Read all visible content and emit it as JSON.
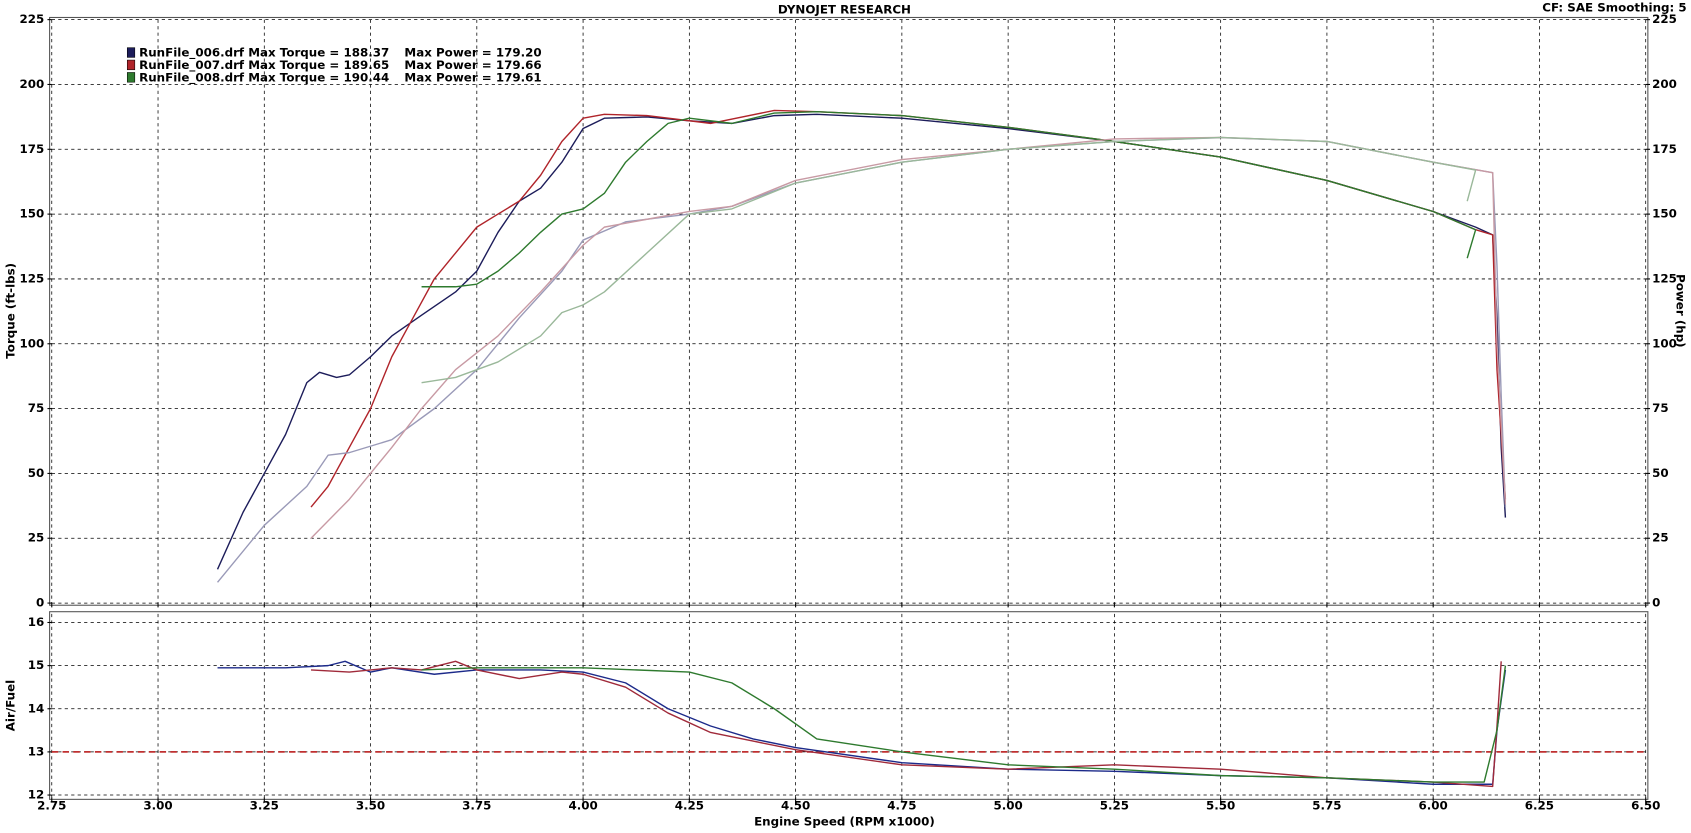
{
  "chart_data": [
    {
      "type": "line",
      "title": "DYNOJET RESEARCH",
      "subtitle": "CF: SAE  Smoothing: 5",
      "ylabel": "Torque (ft-lbs)",
      "y2label": "Power (hp)",
      "xlim": [
        2.75,
        6.5
      ],
      "xticks": [
        2.75,
        3,
        3.25,
        3.5,
        3.75,
        4,
        4.25,
        4.5,
        4.75,
        5,
        5.25,
        5.5,
        5.75,
        6,
        6.25,
        6.5
      ],
      "ylim": [
        0,
        225
      ],
      "yticks": [
        0,
        25,
        50,
        75,
        100,
        125,
        150,
        175,
        200,
        225
      ],
      "y2lim": [
        0,
        225
      ],
      "y2ticks": [
        0,
        25,
        50,
        75,
        100,
        125,
        150,
        175,
        200,
        225
      ],
      "grid": true,
      "legend": "top-left",
      "series": [
        {
          "name": "RunFile_006.drf Max Torque = 188.37",
          "color": "#1c1c5a",
          "x": [
            3.14,
            3.2,
            3.25,
            3.3,
            3.35,
            3.38,
            3.42,
            3.45,
            3.5,
            3.55,
            3.62,
            3.7,
            3.75,
            3.8,
            3.85,
            3.9,
            3.95,
            4.0,
            4.05,
            4.15,
            4.25,
            4.35,
            4.45,
            4.55,
            4.75,
            5.0,
            5.25,
            5.5,
            5.75,
            6.0,
            6.1,
            6.14,
            6.15,
            6.16,
            6.17
          ],
          "values": [
            13,
            35,
            50,
            65,
            85,
            89,
            87,
            88,
            95,
            103,
            111,
            120,
            128,
            143,
            155,
            160,
            170,
            183,
            187,
            187.5,
            186,
            185,
            188,
            188.5,
            187,
            183,
            178,
            172,
            163,
            151,
            145,
            142,
            110,
            60,
            33
          ]
        },
        {
          "name": "RunFile_007.drf Max Torque = 189.65",
          "color": "#b0242a",
          "x": [
            3.36,
            3.4,
            3.45,
            3.5,
            3.55,
            3.6,
            3.65,
            3.7,
            3.75,
            3.8,
            3.85,
            3.9,
            3.95,
            4.0,
            4.05,
            4.15,
            4.3,
            4.45,
            4.55,
            4.75,
            5.0,
            5.25,
            5.5,
            5.75,
            6.0,
            6.1,
            6.14,
            6.15,
            6.17
          ],
          "values": [
            37,
            45,
            60,
            75,
            95,
            110,
            125,
            135,
            145,
            150,
            155,
            165,
            178,
            187,
            188.5,
            188,
            185,
            190,
            189.5,
            188,
            183.5,
            178,
            172,
            163,
            151,
            144,
            142,
            90,
            40
          ]
        },
        {
          "name": "RunFile_008.drf Max Torque = 190.44",
          "color": "#2e7a2e",
          "x": [
            3.62,
            3.7,
            3.75,
            3.8,
            3.85,
            3.9,
            3.95,
            4.0,
            4.05,
            4.1,
            4.15,
            4.2,
            4.25,
            4.35,
            4.45,
            4.55,
            4.75,
            5.0,
            5.25,
            5.5,
            5.75,
            6.0,
            6.1,
            6.08
          ],
          "values": [
            122,
            122,
            123,
            128,
            135,
            143,
            150,
            152,
            158,
            170,
            178,
            185,
            187,
            185,
            189,
            189.5,
            188,
            183.5,
            178,
            172,
            163,
            151,
            144,
            133
          ]
        },
        {
          "name": "Max Power = 179.20",
          "color": "#9a9ab8",
          "axis": "y2",
          "x": [
            3.14,
            3.25,
            3.35,
            3.4,
            3.45,
            3.55,
            3.65,
            3.75,
            3.85,
            3.95,
            4.0,
            4.1,
            4.25,
            4.35,
            4.5,
            4.75,
            5.0,
            5.25,
            5.5,
            5.75,
            6.0,
            6.14,
            6.15,
            6.16,
            6.17
          ],
          "values": [
            8,
            30,
            45,
            57,
            58,
            63,
            75,
            90,
            110,
            128,
            140,
            147,
            150,
            153,
            162,
            170,
            175,
            178,
            179.5,
            178,
            170,
            166,
            130,
            80,
            37
          ]
        },
        {
          "name": "Max Power = 179.66",
          "color": "#c89aa4",
          "axis": "y2",
          "x": [
            3.36,
            3.45,
            3.55,
            3.62,
            3.7,
            3.8,
            3.9,
            4.0,
            4.05,
            4.25,
            4.35,
            4.5,
            4.75,
            5.0,
            5.25,
            5.5,
            5.75,
            6.0,
            6.14,
            6.15,
            6.17
          ],
          "values": [
            25,
            40,
            60,
            75,
            90,
            103,
            120,
            138,
            145,
            151,
            153,
            163,
            171,
            175,
            179,
            179.6,
            178,
            170,
            166,
            100,
            38
          ]
        },
        {
          "name": "Max Power = 179.61",
          "color": "#9ab89a",
          "axis": "y2",
          "x": [
            3.62,
            3.7,
            3.8,
            3.9,
            3.95,
            4.0,
            4.05,
            4.15,
            4.25,
            4.35,
            4.5,
            4.75,
            5.0,
            5.25,
            5.5,
            5.75,
            6.0,
            6.1,
            6.08
          ],
          "values": [
            85,
            87,
            93,
            103,
            112,
            115,
            120,
            135,
            150,
            152,
            162,
            170,
            175,
            178,
            179.6,
            178,
            170,
            167,
            155
          ]
        }
      ]
    },
    {
      "type": "line",
      "xlabel": "Engine Speed (RPM x1000)",
      "ylabel": "Air/Fuel",
      "xlim": [
        2.75,
        6.5
      ],
      "xticks": [
        2.75,
        {
          "value": 3,
          "label": "3.00"
        },
        3.25,
        {
          "value": 3.5,
          "label": "3.50"
        },
        3.75,
        {
          "value": 4,
          "label": "4.00"
        },
        4.25,
        {
          "value": 4.5,
          "label": "4.50"
        },
        4.75,
        {
          "value": 5,
          "label": "5.00"
        },
        5.25,
        {
          "value": 5.5,
          "label": "5.50"
        },
        5.75,
        {
          "value": 6,
          "label": "6.00"
        },
        6.25,
        {
          "value": 6.5,
          "label": "6.50"
        }
      ],
      "ylim": [
        11.95,
        16.2
      ],
      "yticks": [
        12,
        13,
        14,
        15,
        16
      ],
      "grid": true,
      "hlines": [
        13
      ],
      "hline_color": "#c03030",
      "series": [
        {
          "color": "#1c2a8a",
          "x": [
            3.14,
            3.3,
            3.4,
            3.44,
            3.5,
            3.55,
            3.65,
            3.75,
            3.9,
            4.0,
            4.1,
            4.2,
            4.3,
            4.4,
            4.5,
            4.75,
            5.0,
            5.25,
            5.5,
            5.75,
            6.0,
            6.14,
            6.15,
            6.17
          ],
          "values": [
            14.95,
            14.95,
            15.0,
            15.1,
            14.85,
            14.95,
            14.8,
            14.9,
            14.9,
            14.85,
            14.6,
            14.0,
            13.6,
            13.3,
            13.1,
            12.75,
            12.6,
            12.55,
            12.45,
            12.4,
            12.25,
            12.25,
            13.5,
            14.9
          ]
        },
        {
          "color": "#a02a3a",
          "x": [
            3.36,
            3.45,
            3.55,
            3.62,
            3.7,
            3.75,
            3.85,
            3.95,
            4.0,
            4.1,
            4.2,
            4.3,
            4.4,
            4.5,
            4.75,
            5.0,
            5.25,
            5.5,
            5.75,
            6.0,
            6.14,
            6.15,
            6.16
          ],
          "values": [
            14.9,
            14.85,
            14.95,
            14.9,
            15.1,
            14.9,
            14.7,
            14.85,
            14.8,
            14.5,
            13.9,
            13.45,
            13.25,
            13.05,
            12.7,
            12.6,
            12.7,
            12.6,
            12.4,
            12.3,
            12.2,
            13.6,
            15.1
          ]
        },
        {
          "color": "#2e7a2e",
          "x": [
            3.62,
            3.75,
            4.0,
            4.25,
            4.35,
            4.45,
            4.55,
            4.75,
            5.0,
            5.25,
            5.5,
            5.75,
            6.0,
            6.12,
            6.15,
            6.17
          ],
          "values": [
            14.9,
            14.95,
            14.95,
            14.85,
            14.6,
            14.0,
            13.3,
            13.0,
            12.7,
            12.6,
            12.45,
            12.4,
            12.3,
            12.3,
            13.5,
            15.0
          ]
        }
      ]
    }
  ]
}
